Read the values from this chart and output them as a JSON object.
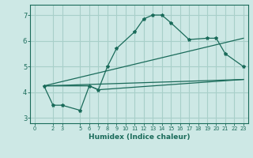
{
  "background_color": "#cde8e5",
  "grid_color": "#a8cfc9",
  "line_color": "#1a6b5a",
  "xlabel": "Humidex (Indice chaleur)",
  "ylim": [
    2.8,
    7.4
  ],
  "xlim": [
    -0.5,
    23.5
  ],
  "yticks": [
    3,
    4,
    5,
    6,
    7
  ],
  "xticks": [
    0,
    2,
    3,
    5,
    6,
    7,
    8,
    9,
    10,
    11,
    12,
    13,
    14,
    15,
    16,
    17,
    18,
    19,
    20,
    21,
    22,
    23
  ],
  "line1_x": [
    1,
    2,
    3,
    5,
    6,
    7,
    8,
    9,
    11,
    12,
    13,
    14,
    15,
    17,
    19,
    20,
    21,
    23
  ],
  "line1_y": [
    4.25,
    3.5,
    3.5,
    3.3,
    4.25,
    4.1,
    5.0,
    5.7,
    6.35,
    6.85,
    7.0,
    7.0,
    6.7,
    6.05,
    6.1,
    6.1,
    5.5,
    5.0
  ],
  "line2_x": [
    1,
    23
  ],
  "line2_y": [
    4.25,
    4.5
  ],
  "line3_x": [
    1,
    6,
    7,
    23
  ],
  "line3_y": [
    4.25,
    4.25,
    4.1,
    4.5
  ],
  "line4_x": [
    1,
    23
  ],
  "line4_y": [
    4.25,
    6.1
  ]
}
